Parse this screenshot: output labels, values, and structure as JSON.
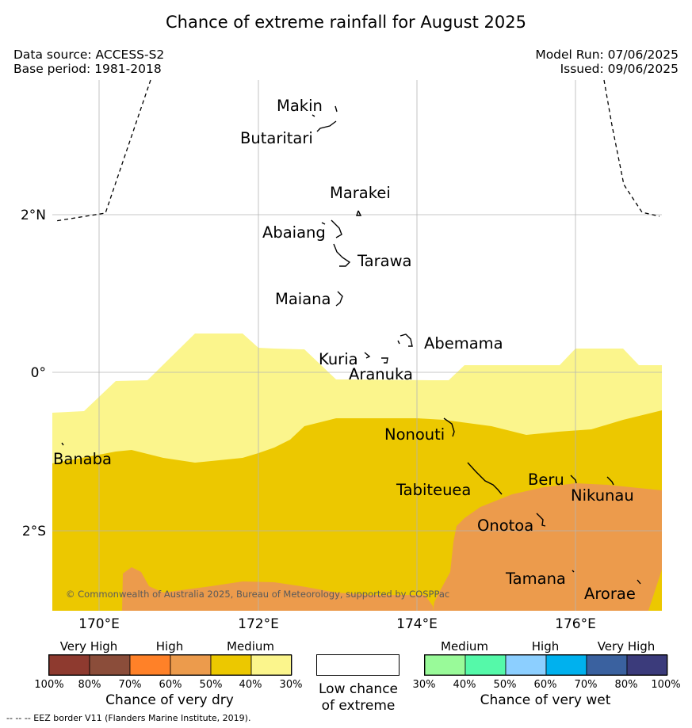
{
  "title": "Chance of extreme rainfall for August 2025",
  "meta": {
    "data_source": "Data source: ACCESS-S2",
    "base_period": "Base period: 1981-2018",
    "model_run": "Model Run: 07/06/2025",
    "issued": "Issued: 09/06/2025"
  },
  "map": {
    "lon_labels": [
      "170°E",
      "172°E",
      "174°E",
      "176°E"
    ],
    "lat_labels": [
      "2°N",
      "0°",
      "2°S"
    ],
    "places": [
      {
        "key": "makin",
        "name": "Makin"
      },
      {
        "key": "butaritari",
        "name": "Butaritari"
      },
      {
        "key": "marakei",
        "name": "Marakei"
      },
      {
        "key": "abaiang",
        "name": "Abaiang"
      },
      {
        "key": "tarawa",
        "name": "Tarawa"
      },
      {
        "key": "maiana",
        "name": "Maiana"
      },
      {
        "key": "abemama",
        "name": "Abemama"
      },
      {
        "key": "kuria",
        "name": "Kuria"
      },
      {
        "key": "aranuka",
        "name": "Aranuka"
      },
      {
        "key": "nonouti",
        "name": "Nonouti"
      },
      {
        "key": "banaba",
        "name": "Banaba"
      },
      {
        "key": "tabiteuea",
        "name": "Tabiteuea"
      },
      {
        "key": "beru",
        "name": "Beru"
      },
      {
        "key": "nikunau",
        "name": "Nikunau"
      },
      {
        "key": "onotoa",
        "name": "Onotoa"
      },
      {
        "key": "tamana",
        "name": "Tamana"
      },
      {
        "key": "arorae",
        "name": "Arorae"
      }
    ],
    "copyright": "© Commonwealth of Australia 2025, Bureau of Meteorology, supported by COSPPac",
    "colors": {
      "dry_medium_30_40": "#fbf58c",
      "dry_medium_40_50": "#ecc800",
      "dry_high_50_60": "#ec9b4c"
    }
  },
  "legend": {
    "dry": {
      "categories": [
        "Very High",
        "High",
        "Medium"
      ],
      "ticks": [
        "100%",
        "80%",
        "70%",
        "60%",
        "50%",
        "40%",
        "30%"
      ],
      "colors": [
        "#8e3a2f",
        "#8b4d3a",
        "#ff8128",
        "#ec9b4c",
        "#ecc800",
        "#fbf58c"
      ],
      "title": "Chance of very dry"
    },
    "low": {
      "line1": "Low chance",
      "line2": "of extreme"
    },
    "wet": {
      "categories": [
        "Medium",
        "High",
        "Very High"
      ],
      "ticks": [
        "30%",
        "40%",
        "50%",
        "60%",
        "70%",
        "80%",
        "100%"
      ],
      "colors": [
        "#99fa99",
        "#55f9a9",
        "#8ccfff",
        "#00b1ee",
        "#3a619f",
        "#3b3b7b"
      ],
      "title": "Chance of very wet"
    }
  },
  "eez_note": "--  --  -- EEZ border V11 (Flanders Marine Institute, 2019)."
}
